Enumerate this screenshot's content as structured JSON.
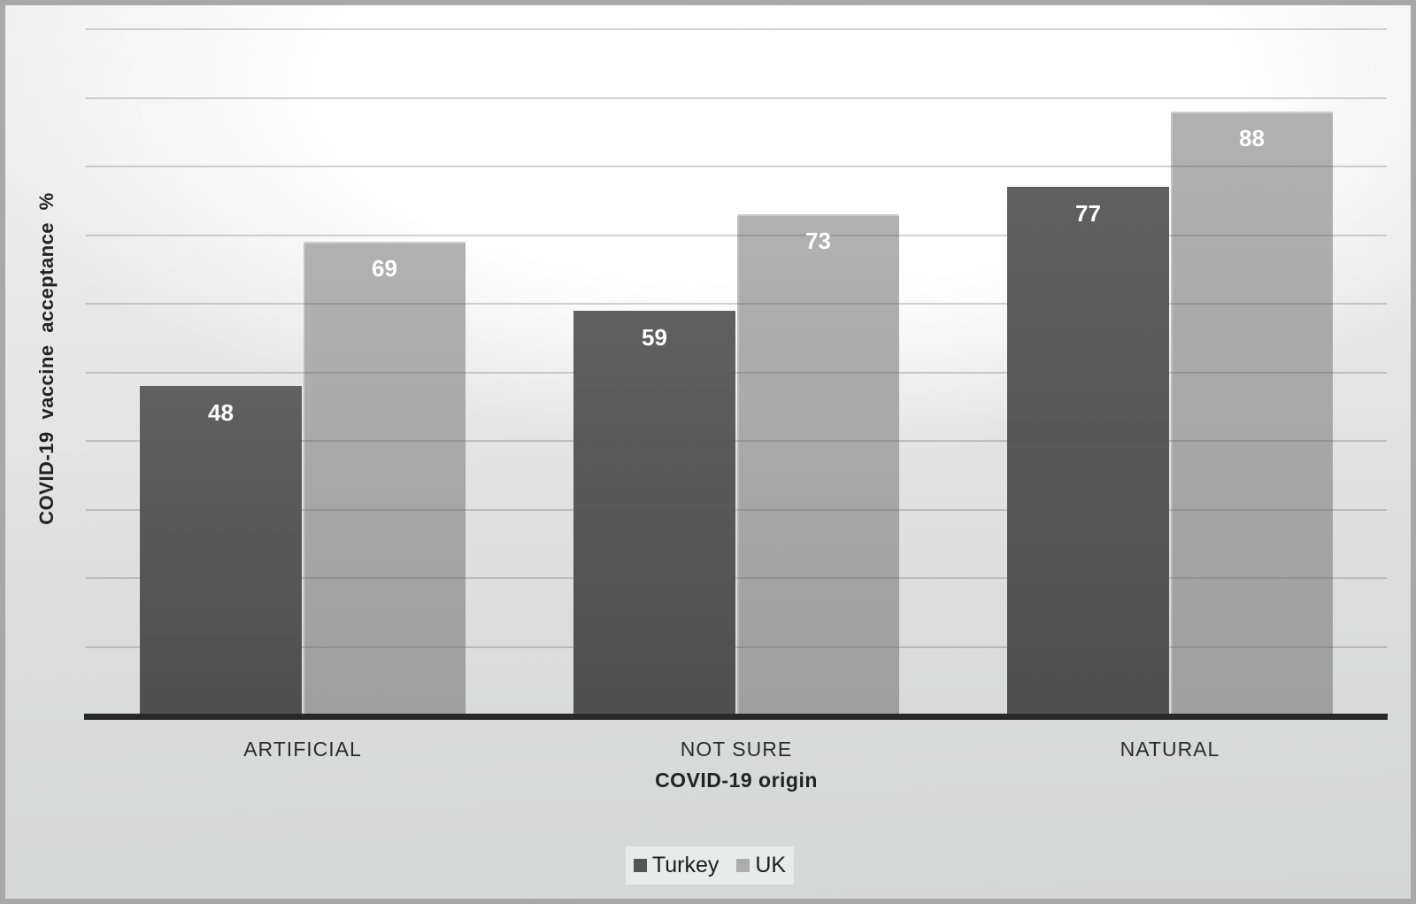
{
  "chart_data": {
    "type": "bar",
    "title": "",
    "categories": [
      "ARTIFICIAL",
      "NOT SURE",
      "NATURAL"
    ],
    "series": [
      {
        "name": "Turkey",
        "color": "#565656",
        "values": [
          48,
          59,
          77
        ]
      },
      {
        "name": "UK",
        "color": "#acacac",
        "values": [
          69,
          73,
          88
        ]
      }
    ],
    "xlabel": "COVID-19 origin",
    "ylabel": "COVID-19 vaccine acceptance %",
    "ylim": [
      0,
      100
    ],
    "gridline_step": 10,
    "grid": "horizontal",
    "legend_position": "bottom-center",
    "value_labels": "inside-top-white",
    "colors": {
      "axis_line": "#282828",
      "gridline": "#c7c7c7",
      "value_label_text": "#ffffff",
      "frame_border": "#a8a8a8",
      "legend_background": "#e9eaea"
    }
  }
}
